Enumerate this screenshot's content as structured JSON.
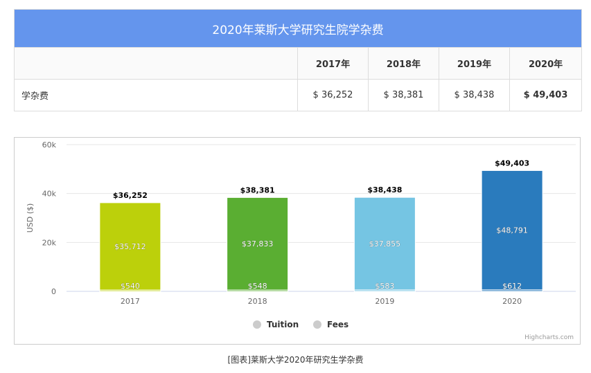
{
  "table": {
    "title": "2020年莱斯大学研究生院学杂费",
    "years": [
      "2017年",
      "2018年",
      "2019年",
      "2020年"
    ],
    "row_label": "学杂费",
    "row_values": [
      "$ 36,252",
      "$ 38,381",
      "$ 38,438",
      "$ 49,403"
    ]
  },
  "chart_data": {
    "type": "bar",
    "stacked": true,
    "categories": [
      "2017",
      "2018",
      "2019",
      "2020"
    ],
    "series": [
      {
        "name": "Tuition",
        "values": [
          35712,
          37833,
          37855,
          48791
        ]
      },
      {
        "name": "Fees",
        "values": [
          540,
          548,
          583,
          612
        ]
      }
    ],
    "totals": [
      36252,
      38381,
      38438,
      49403
    ],
    "total_labels": [
      "$36,252",
      "$38,381",
      "$38,438",
      "$49,403"
    ],
    "tuition_labels": [
      "$35,712",
      "$37,833",
      "$37,855",
      "$48,791"
    ],
    "fee_labels": [
      "$540",
      "$548",
      "$583",
      "$612"
    ],
    "bar_colors": [
      "#bcd00b",
      "#5aae32",
      "#75c5e3",
      "#2a7bbd"
    ],
    "ylabel": "USD ($)",
    "ylim": [
      0,
      60000
    ],
    "yticks": [
      0,
      20000,
      40000,
      60000
    ],
    "ytick_labels": [
      "0",
      "20k",
      "40k",
      "60k"
    ],
    "grid": true,
    "legend": {
      "position": "bottom-center",
      "items": [
        "Tuition",
        "Fees"
      ],
      "color": "#cccccc"
    }
  },
  "credit": "Highcharts.com",
  "caption": "[图表]莱斯大学2020年研究生学杂费"
}
